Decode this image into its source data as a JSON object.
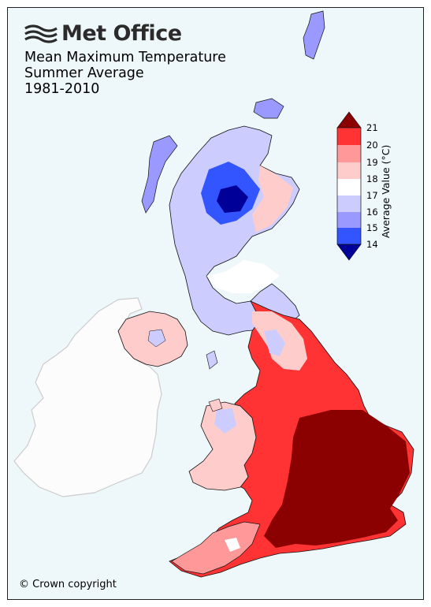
{
  "header": {
    "logo_text": "Met Office",
    "title_line1": "Mean Maximum Temperature",
    "title_line2": "Summer Average",
    "title_line3": "1981-2010"
  },
  "footer": {
    "copyright": "© Crown copyright"
  },
  "colorbar": {
    "title": "Average Value (°C)",
    "ticks": [
      "21",
      "20",
      "19",
      "18",
      "17",
      "16",
      "15",
      "14"
    ],
    "bands": [
      {
        "range": ">21",
        "color": "#8b0000"
      },
      {
        "range": "20-21",
        "color": "#ff3333"
      },
      {
        "range": "19-20",
        "color": "#ff9999"
      },
      {
        "range": "18-19",
        "color": "#ffcccc"
      },
      {
        "range": "17-18",
        "color": "#ffffff"
      },
      {
        "range": "16-17",
        "color": "#ccccff"
      },
      {
        "range": "15-16",
        "color": "#9999ff"
      },
      {
        "range": "14-15",
        "color": "#3355ff"
      },
      {
        "range": "<14",
        "color": "#000099"
      }
    ]
  },
  "colors": {
    "background": "#eef7fa",
    "ireland_fill": "#fcfcfc",
    "border": "#222222"
  }
}
